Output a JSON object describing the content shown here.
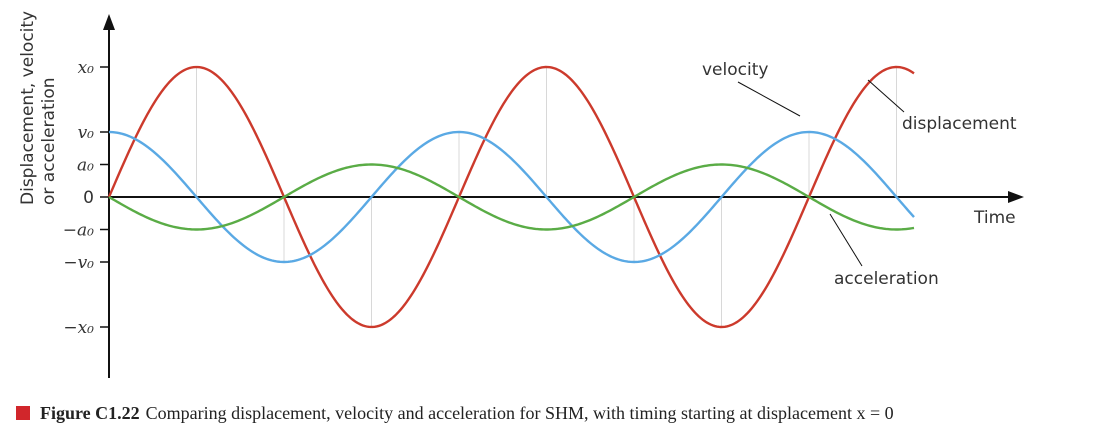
{
  "chart_data": {
    "type": "line",
    "ylabel_lines": [
      "Displacement, velocity",
      "or acceleration"
    ],
    "xlabel": "Time",
    "x_range": [
      0,
      2.3
    ],
    "y_range": [
      -3,
      3
    ],
    "y_ticks": [
      {
        "value": 2,
        "label": "x₀",
        "italic": true
      },
      {
        "value": 1,
        "label": "v₀",
        "italic": true
      },
      {
        "value": 0.5,
        "label": "a₀",
        "italic": true
      },
      {
        "value": 0,
        "label": "0",
        "italic": false
      },
      {
        "value": -0.5,
        "label": "−a₀",
        "italic": true
      },
      {
        "value": -1,
        "label": "−v₀",
        "italic": true
      },
      {
        "value": -2,
        "label": "−x₀",
        "italic": true
      }
    ],
    "series": [
      {
        "key": "displacement",
        "function": "sine",
        "amplitude": 2,
        "color": "#cc3a2c"
      },
      {
        "key": "velocity",
        "function": "cosine",
        "amplitude": 1,
        "color": "#5aa9e4"
      },
      {
        "key": "acceleration",
        "function": "negative-sine",
        "amplitude": 0.5,
        "color": "#5aac46"
      }
    ],
    "period": 1,
    "annotations": {
      "velocity": "velocity",
      "displacement": "displacement",
      "acceleration": "acceleration"
    },
    "quarter_period_guides": true
  },
  "caption": {
    "figure_label": "Figure C1.22",
    "text": "Comparing displacement, velocity and acceleration for SHM, with timing starting at displacement x = 0",
    "marker_color": "#d1262b"
  }
}
